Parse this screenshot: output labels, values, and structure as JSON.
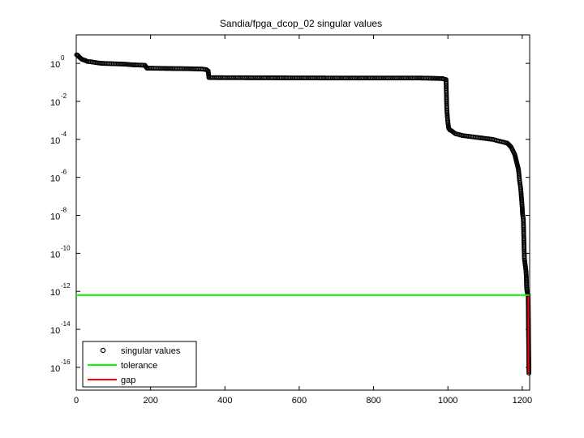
{
  "chart_data": {
    "type": "scatter",
    "title": "Sandia/fpga_dcop_02 singular values",
    "xlabel": "",
    "ylabel": "",
    "xlim": [
      0,
      1220
    ],
    "ylim_log10": [
      -17.2,
      1.5
    ],
    "y_scale": "log",
    "x_ticks": [
      {
        "value": 0,
        "label": "0"
      },
      {
        "value": 200,
        "label": "200"
      },
      {
        "value": 400,
        "label": "400"
      },
      {
        "value": 600,
        "label": "600"
      },
      {
        "value": 800,
        "label": "800"
      },
      {
        "value": 1000,
        "label": "1000"
      },
      {
        "value": 1200,
        "label": "1200"
      }
    ],
    "y_ticks": [
      {
        "exp": 0,
        "base": "10",
        "sup": "0"
      },
      {
        "exp": -2,
        "base": "10",
        "sup": "-2"
      },
      {
        "exp": -4,
        "base": "10",
        "sup": "-4"
      },
      {
        "exp": -6,
        "base": "10",
        "sup": "-6"
      },
      {
        "exp": -8,
        "base": "10",
        "sup": "-8"
      },
      {
        "exp": -10,
        "base": "10",
        "sup": "-10"
      },
      {
        "exp": -12,
        "base": "10",
        "sup": "-12"
      },
      {
        "exp": -14,
        "base": "10",
        "sup": "-14"
      },
      {
        "exp": -16,
        "base": "10",
        "sup": "-16"
      }
    ],
    "singular_values_log10_profile": [
      [
        1,
        0.45
      ],
      [
        3,
        0.44
      ],
      [
        6,
        0.38
      ],
      [
        10,
        0.3
      ],
      [
        15,
        0.22
      ],
      [
        20,
        0.18
      ],
      [
        25,
        0.15
      ],
      [
        30,
        0.1
      ],
      [
        40,
        0.08
      ],
      [
        50,
        0.05
      ],
      [
        60,
        0.02
      ],
      [
        70,
        0.0
      ],
      [
        100,
        -0.02
      ],
      [
        130,
        -0.04
      ],
      [
        155,
        -0.08
      ],
      [
        185,
        -0.1
      ],
      [
        190,
        -0.25
      ],
      [
        250,
        -0.27
      ],
      [
        300,
        -0.28
      ],
      [
        340,
        -0.3
      ],
      [
        350,
        -0.33
      ],
      [
        355,
        -0.4
      ],
      [
        357,
        -0.75
      ],
      [
        500,
        -0.76
      ],
      [
        700,
        -0.77
      ],
      [
        920,
        -0.77
      ],
      [
        950,
        -0.78
      ],
      [
        985,
        -0.8
      ],
      [
        995,
        -0.85
      ],
      [
        997,
        -2.4
      ],
      [
        999,
        -2.9
      ],
      [
        1000,
        -3.1
      ],
      [
        1002,
        -3.4
      ],
      [
        1005,
        -3.5
      ],
      [
        1010,
        -3.55
      ],
      [
        1020,
        -3.7
      ],
      [
        1040,
        -3.8
      ],
      [
        1060,
        -3.85
      ],
      [
        1080,
        -3.9
      ],
      [
        1100,
        -3.95
      ],
      [
        1120,
        -4.0
      ],
      [
        1140,
        -4.1
      ],
      [
        1160,
        -4.2
      ],
      [
        1170,
        -4.4
      ],
      [
        1180,
        -4.8
      ],
      [
        1185,
        -5.2
      ],
      [
        1190,
        -5.6
      ],
      [
        1193,
        -6.2
      ],
      [
        1196,
        -6.6
      ],
      [
        1198,
        -7.1
      ],
      [
        1200,
        -7.6
      ],
      [
        1201,
        -7.95
      ],
      [
        1203,
        -8.2
      ],
      [
        1205,
        -9.7
      ],
      [
        1206,
        -10.3
      ],
      [
        1208,
        -10.6
      ],
      [
        1210,
        -10.9
      ],
      [
        1211,
        -11.2
      ],
      [
        1212,
        -11.9
      ],
      [
        1214,
        -12.1
      ],
      [
        1216,
        -12.2
      ],
      [
        1218,
        -16.3
      ]
    ],
    "tolerance_log10": -12.2,
    "gap": {
      "x": 1217,
      "from_log10": -12.2,
      "to_log10": -16.3
    },
    "legend": {
      "placement": "bottom-left",
      "entries": [
        {
          "label": "singular values",
          "marker": "circle",
          "color": "#000000"
        },
        {
          "label": "tolerance",
          "marker": "line",
          "color": "#00ff00"
        },
        {
          "label": "gap",
          "marker": "line",
          "color": "#ff0000"
        }
      ]
    },
    "grid": false,
    "colors": {
      "points": "#000000",
      "tolerance": "#00ff00",
      "gap": "#ff0000",
      "axes": "#000000"
    }
  }
}
